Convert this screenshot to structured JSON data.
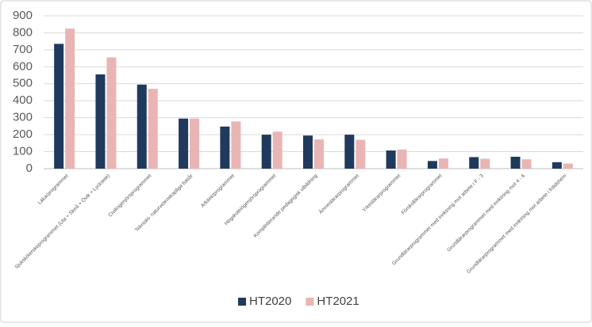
{
  "chart_data": {
    "type": "bar",
    "categories": [
      "Läkarprogrammet",
      "Sjuksköterskeprogrammet (Ula + Skeå + Övik + Lycksele)",
      "Civilingenjörsprogrammet",
      "Tekniskt- naturvetenskapliga basår",
      "Arkitektprogrammet",
      "Högskoleingenjörsprogrammet",
      "Kompletterande pedagogisk utbildning",
      "Ämneslärarprogrammet",
      "Yrkeslärarprogrammet",
      "Förskollärarprogrammet",
      "Grundlärarprogrammet med inriktning mot arbete i F - 3",
      "Grundlärarprogrammet med inriktning mot 4 - 6",
      "Grundlärarprogrammet med inriktning mot arbete i fritidshem"
    ],
    "series": [
      {
        "name": "HT2020",
        "color": "#1f3a5c",
        "values": [
          735,
          555,
          495,
          295,
          248,
          200,
          195,
          200,
          107,
          45,
          68,
          70,
          38
        ]
      },
      {
        "name": "HT2021",
        "color": "#e9b5b4",
        "values": [
          825,
          655,
          470,
          295,
          278,
          218,
          172,
          170,
          113,
          60,
          58,
          55,
          30
        ]
      }
    ],
    "ylim": [
      0,
      900
    ],
    "yticks": [
      0,
      100,
      200,
      300,
      400,
      500,
      600,
      700,
      800,
      900
    ],
    "grid": true,
    "legend": "bottom"
  }
}
